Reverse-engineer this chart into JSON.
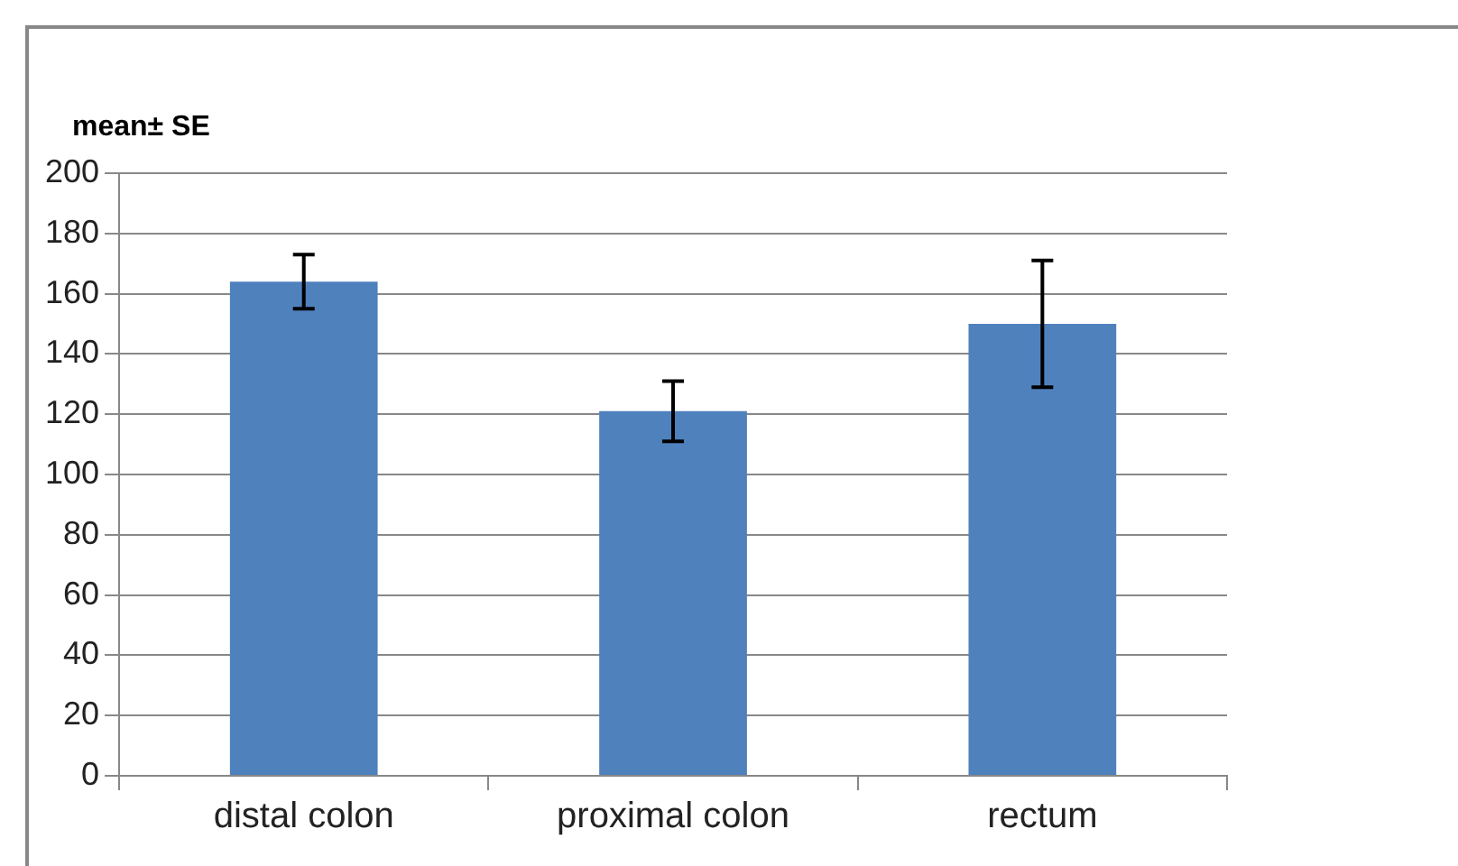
{
  "chart_data": {
    "type": "bar",
    "ylabel": "mean± SE",
    "categories": [
      "distal colon",
      "proximal colon",
      "rectum"
    ],
    "values": [
      164,
      121,
      150
    ],
    "errors": [
      9,
      10,
      21
    ],
    "color": "#4f81bd",
    "ylim": [
      0,
      200
    ],
    "yticks": [
      0,
      20,
      40,
      60,
      80,
      100,
      120,
      140,
      160,
      180,
      200
    ],
    "grid": "y",
    "legend": false
  }
}
